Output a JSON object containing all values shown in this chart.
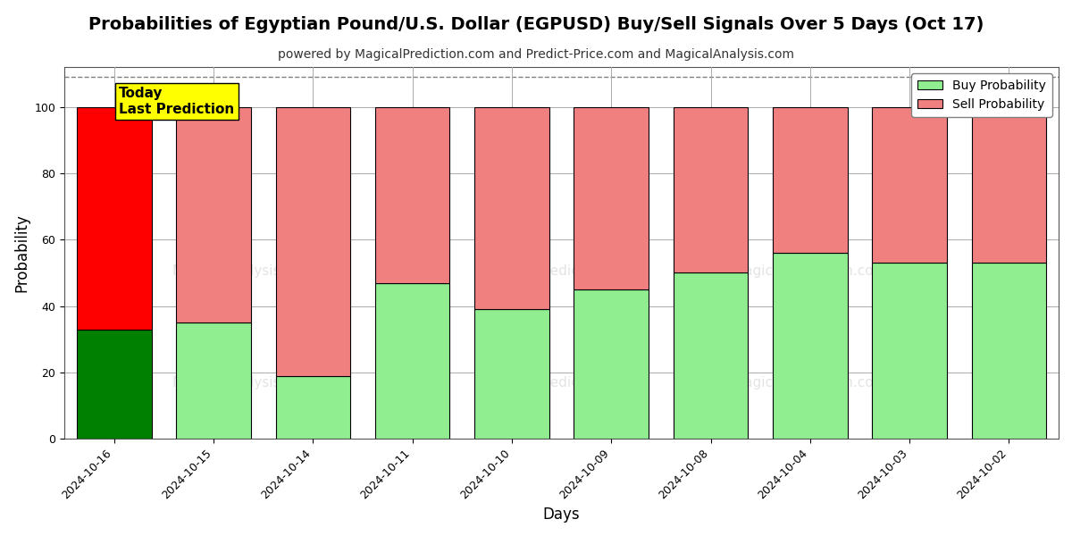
{
  "title": "Probabilities of Egyptian Pound/U.S. Dollar (EGPUSD) Buy/Sell Signals Over 5 Days (Oct 17)",
  "subtitle": "powered by MagicalPrediction.com and Predict-Price.com and MagicalAnalysis.com",
  "xlabel": "Days",
  "ylabel": "Probability",
  "dates": [
    "2024-10-16",
    "2024-10-15",
    "2024-10-14",
    "2024-10-11",
    "2024-10-10",
    "2024-10-09",
    "2024-10-08",
    "2024-10-04",
    "2024-10-03",
    "2024-10-02"
  ],
  "buy_values": [
    33,
    35,
    19,
    47,
    39,
    45,
    50,
    56,
    53,
    53
  ],
  "sell_values": [
    67,
    65,
    81,
    53,
    61,
    55,
    50,
    44,
    47,
    47
  ],
  "today_bar_buy_color": "#008000",
  "today_bar_sell_color": "#FF0000",
  "other_bar_buy_color": "#90EE90",
  "other_bar_sell_color": "#F08080",
  "bar_edge_color": "#000000",
  "bar_edge_linewidth": 0.8,
  "legend_buy_color": "#90EE90",
  "legend_sell_color": "#F08080",
  "ylim": [
    0,
    112
  ],
  "yticks": [
    0,
    20,
    40,
    60,
    80,
    100
  ],
  "dashed_line_y": 109,
  "background_color": "#ffffff",
  "grid_color": "#aaaaaa",
  "today_annotation_text": "Today\nLast Prediction",
  "today_annotation_bgcolor": "#FFFF00",
  "today_annotation_fontsize": 11,
  "title_fontsize": 14,
  "subtitle_fontsize": 10,
  "axis_label_fontsize": 12,
  "tick_fontsize": 9,
  "legend_fontsize": 10,
  "bar_width": 0.75
}
